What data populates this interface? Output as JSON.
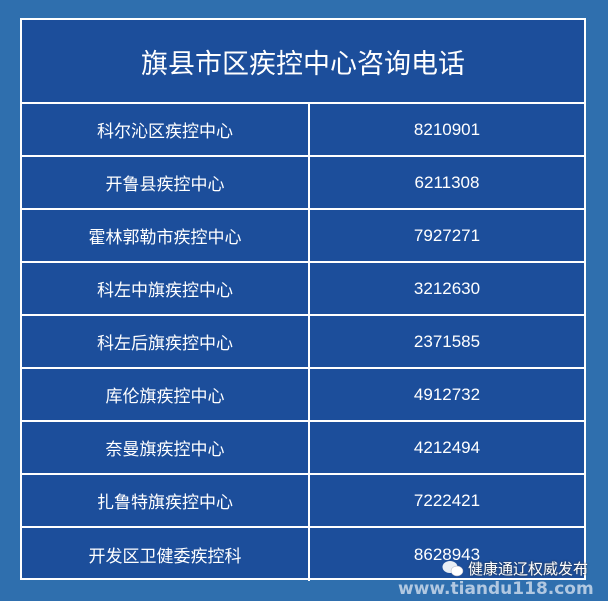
{
  "title": "旗县市区疾控中心咨询电话",
  "rows": [
    {
      "name": "科尔沁区疾控中心",
      "phone": "8210901"
    },
    {
      "name": "开鲁县疾控中心",
      "phone": "6211308"
    },
    {
      "name": "霍林郭勒市疾控中心",
      "phone": "7927271"
    },
    {
      "name": "科左中旗疾控中心",
      "phone": "3212630"
    },
    {
      "name": "科左后旗疾控中心",
      "phone": "2371585"
    },
    {
      "name": "库伦旗疾控中心",
      "phone": "4912732"
    },
    {
      "name": "奈曼旗疾控中心",
      "phone": "4212494"
    },
    {
      "name": "扎鲁特旗疾控中心",
      "phone": "7222421"
    },
    {
      "name": "开发区卫健委疾控科",
      "phone": "8628943"
    }
  ],
  "watermark": {
    "account": "健康通辽权威发布",
    "url": "www.tiandu118.com",
    "icon": "wechat-icon"
  },
  "colors": {
    "background": "#2f6fae",
    "table": "#1c4e9b",
    "border": "#ffffff"
  }
}
